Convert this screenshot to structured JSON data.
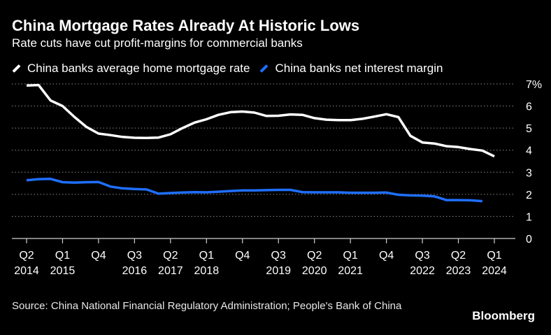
{
  "chart_data": {
    "type": "line",
    "title": "China Mortgage Rates Already At Historic Lows",
    "subtitle": "Rate cuts have cut profit-margins for commercial banks",
    "x_ticks": [
      {
        "quarter": "Q2",
        "year": "2014",
        "t": 2014.25
      },
      {
        "quarter": "Q1",
        "year": "2015",
        "t": 2015.0
      },
      {
        "quarter": "Q4",
        "year": "",
        "t": 2015.75
      },
      {
        "quarter": "Q3",
        "year": "2016",
        "t": 2016.5
      },
      {
        "quarter": "Q2",
        "year": "2017",
        "t": 2017.25
      },
      {
        "quarter": "Q1",
        "year": "2018",
        "t": 2018.0
      },
      {
        "quarter": "Q4",
        "year": "",
        "t": 2018.75
      },
      {
        "quarter": "Q3",
        "year": "2019",
        "t": 2019.5
      },
      {
        "quarter": "Q2",
        "year": "2020",
        "t": 2020.25
      },
      {
        "quarter": "Q1",
        "year": "2021",
        "t": 2021.0
      },
      {
        "quarter": "Q4",
        "year": "",
        "t": 2021.75
      },
      {
        "quarter": "Q3",
        "year": "2022",
        "t": 2022.5
      },
      {
        "quarter": "Q2",
        "year": "2023",
        "t": 2023.25
      },
      {
        "quarter": "Q1",
        "year": "2024",
        "t": 2024.0
      }
    ],
    "y_ticks": [
      {
        "value": 0,
        "label": "0"
      },
      {
        "value": 1,
        "label": "1"
      },
      {
        "value": 2,
        "label": "2"
      },
      {
        "value": 3,
        "label": "3"
      },
      {
        "value": 4,
        "label": "4"
      },
      {
        "value": 5,
        "label": "5"
      },
      {
        "value": 6,
        "label": "6"
      },
      {
        "value": 7,
        "label": "7%"
      }
    ],
    "xlim": [
      2014.25,
      2024.0
    ],
    "ylim": [
      0,
      7
    ],
    "y_axis_side": "right",
    "grid": "horizontal dotted",
    "series": [
      {
        "name": "China banks average home mortgage rate",
        "color": "#ffffff",
        "points": [
          [
            2014.25,
            6.93
          ],
          [
            2014.5,
            6.95
          ],
          [
            2014.75,
            6.25
          ],
          [
            2015.0,
            6.0
          ],
          [
            2015.25,
            5.5
          ],
          [
            2015.5,
            5.05
          ],
          [
            2015.75,
            4.75
          ],
          [
            2016.0,
            4.68
          ],
          [
            2016.25,
            4.6
          ],
          [
            2016.5,
            4.56
          ],
          [
            2016.75,
            4.55
          ],
          [
            2017.0,
            4.57
          ],
          [
            2017.25,
            4.72
          ],
          [
            2017.5,
            5.0
          ],
          [
            2017.75,
            5.25
          ],
          [
            2018.0,
            5.4
          ],
          [
            2018.25,
            5.6
          ],
          [
            2018.5,
            5.72
          ],
          [
            2018.75,
            5.75
          ],
          [
            2019.0,
            5.7
          ],
          [
            2019.25,
            5.55
          ],
          [
            2019.5,
            5.56
          ],
          [
            2019.75,
            5.62
          ],
          [
            2020.0,
            5.6
          ],
          [
            2020.25,
            5.45
          ],
          [
            2020.5,
            5.38
          ],
          [
            2020.75,
            5.36
          ],
          [
            2021.0,
            5.36
          ],
          [
            2021.25,
            5.42
          ],
          [
            2021.5,
            5.52
          ],
          [
            2021.75,
            5.63
          ],
          [
            2022.0,
            5.5
          ],
          [
            2022.25,
            4.65
          ],
          [
            2022.5,
            4.35
          ],
          [
            2022.75,
            4.3
          ],
          [
            2023.0,
            4.18
          ],
          [
            2023.25,
            4.14
          ],
          [
            2023.5,
            4.05
          ],
          [
            2023.75,
            3.98
          ],
          [
            2024.0,
            3.72
          ]
        ]
      },
      {
        "name": "China banks net interest margin",
        "color": "#1f6fff",
        "points": [
          [
            2014.25,
            2.64
          ],
          [
            2014.5,
            2.69
          ],
          [
            2014.75,
            2.7
          ],
          [
            2015.0,
            2.55
          ],
          [
            2015.25,
            2.53
          ],
          [
            2015.5,
            2.55
          ],
          [
            2015.75,
            2.56
          ],
          [
            2016.0,
            2.35
          ],
          [
            2016.25,
            2.27
          ],
          [
            2016.5,
            2.24
          ],
          [
            2016.75,
            2.22
          ],
          [
            2017.0,
            2.03
          ],
          [
            2017.25,
            2.06
          ],
          [
            2017.5,
            2.08
          ],
          [
            2017.75,
            2.1
          ],
          [
            2018.0,
            2.09
          ],
          [
            2018.25,
            2.12
          ],
          [
            2018.5,
            2.15
          ],
          [
            2018.75,
            2.18
          ],
          [
            2019.0,
            2.18
          ],
          [
            2019.25,
            2.19
          ],
          [
            2019.5,
            2.2
          ],
          [
            2019.75,
            2.2
          ],
          [
            2020.0,
            2.1
          ],
          [
            2020.25,
            2.09
          ],
          [
            2020.5,
            2.09
          ],
          [
            2020.75,
            2.09
          ],
          [
            2021.0,
            2.07
          ],
          [
            2021.25,
            2.07
          ],
          [
            2021.5,
            2.07
          ],
          [
            2021.75,
            2.08
          ],
          [
            2022.0,
            1.98
          ],
          [
            2022.25,
            1.95
          ],
          [
            2022.5,
            1.94
          ],
          [
            2022.75,
            1.91
          ],
          [
            2023.0,
            1.74
          ],
          [
            2023.25,
            1.74
          ],
          [
            2023.5,
            1.73
          ],
          [
            2023.75,
            1.69
          ]
        ]
      }
    ]
  },
  "legend": {
    "items": [
      {
        "label": "China banks average home mortgage rate",
        "color": "#ffffff"
      },
      {
        "label": "China banks net interest margin",
        "color": "#1f6fff"
      }
    ]
  },
  "footer": {
    "source": "Source: China National Financial Regulatory Administration; People's Bank of China",
    "brand": "Bloomberg"
  }
}
